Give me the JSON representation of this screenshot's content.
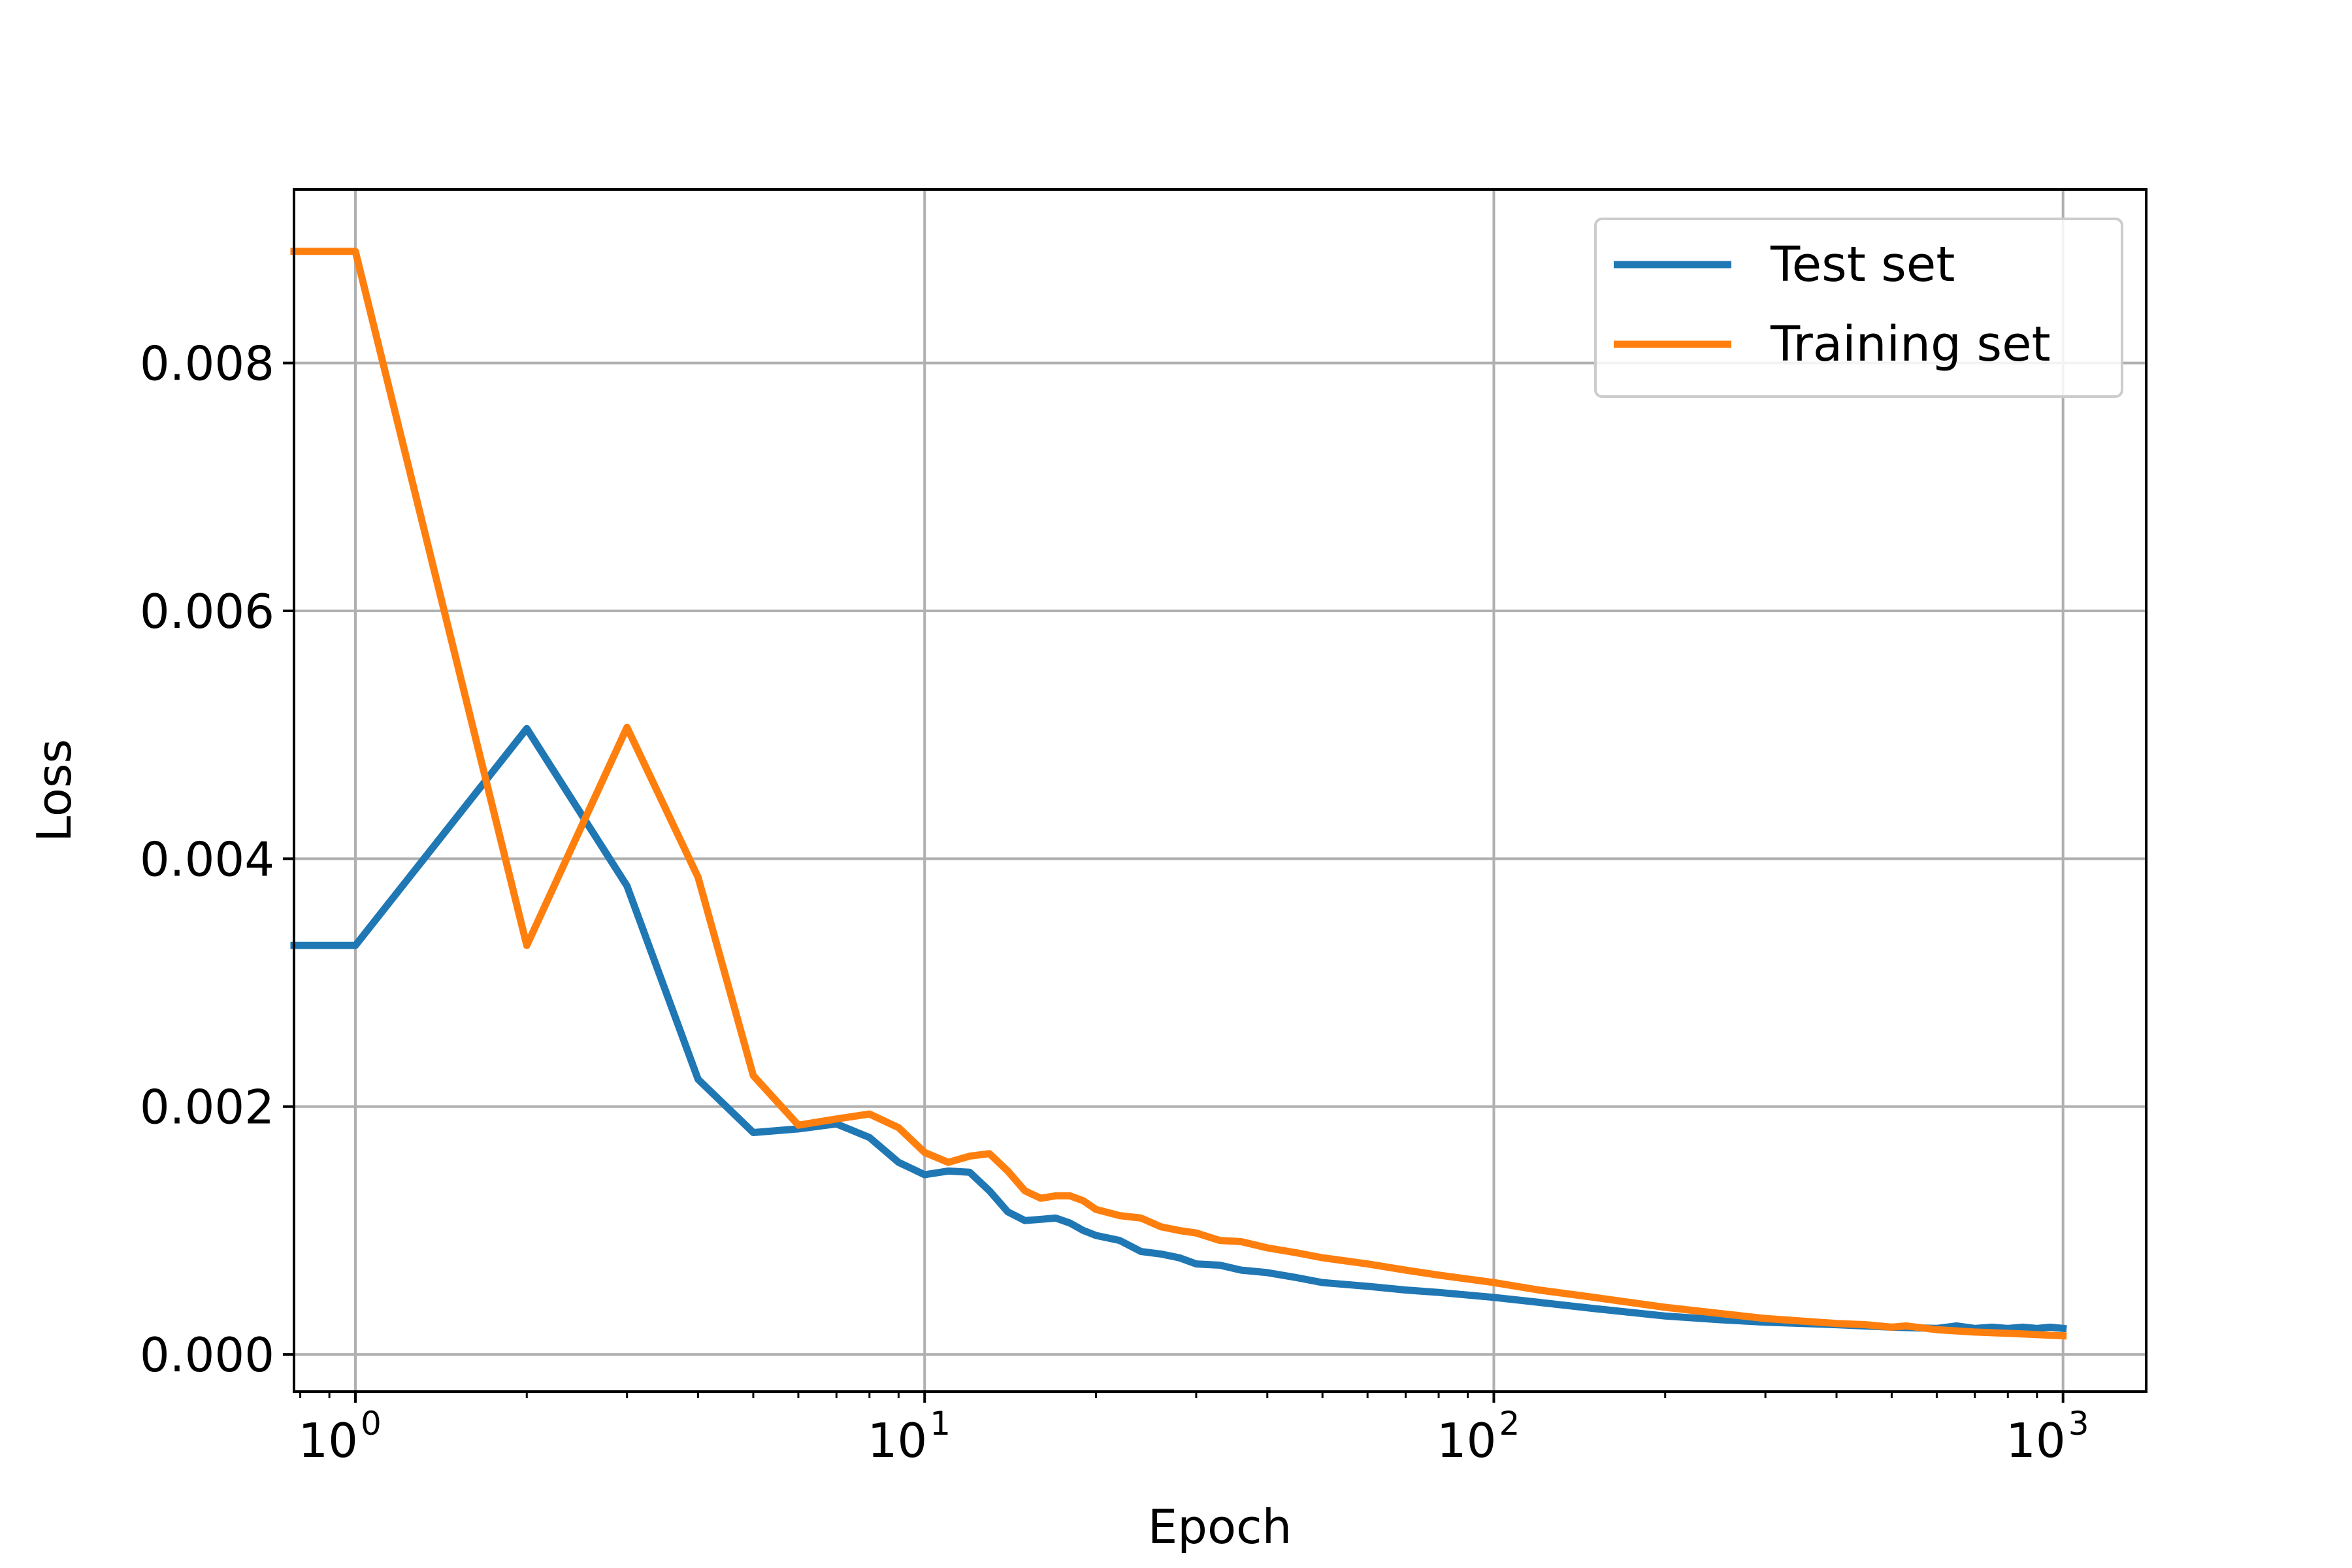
{
  "chart_data": {
    "type": "line",
    "title": "",
    "xlabel": "Epoch",
    "ylabel": "Loss",
    "xscale": "log",
    "xlim": [
      0.78,
      1400
    ],
    "ylim": [
      -0.0003,
      0.0094
    ],
    "grid": true,
    "legend": "top-right",
    "x_ticks": [
      {
        "value": 1,
        "base": "10",
        "exp": "0"
      },
      {
        "value": 10,
        "base": "10",
        "exp": "1"
      },
      {
        "value": 100,
        "base": "10",
        "exp": "2"
      },
      {
        "value": 1000,
        "base": "10",
        "exp": "3"
      }
    ],
    "y_ticks": [
      {
        "value": 0.0,
        "label": "0.000"
      },
      {
        "value": 0.002,
        "label": "0.002"
      },
      {
        "value": 0.004,
        "label": "0.004"
      },
      {
        "value": 0.006,
        "label": "0.006"
      },
      {
        "value": 0.008,
        "label": "0.008"
      }
    ],
    "series": [
      {
        "name": "Test set",
        "color": "#1f77b4",
        "x": [
          0.78,
          1,
          2,
          3,
          4,
          5,
          6,
          7,
          8,
          9,
          10,
          11,
          12,
          13,
          14,
          15,
          16,
          17,
          18,
          19,
          20,
          22,
          24,
          26,
          28,
          30,
          33,
          36,
          40,
          45,
          50,
          60,
          70,
          80,
          100,
          120,
          150,
          200,
          250,
          300,
          400,
          500,
          600,
          650,
          700,
          750,
          800,
          850,
          900,
          950,
          1000
        ],
        "y": [
          0.0033,
          0.0033,
          0.00505,
          0.00378,
          0.00222,
          0.00179,
          0.00182,
          0.00186,
          0.00175,
          0.00155,
          0.00145,
          0.00148,
          0.00147,
          0.00132,
          0.00115,
          0.00108,
          0.00109,
          0.0011,
          0.00106,
          0.001,
          0.00096,
          0.00092,
          0.00083,
          0.00081,
          0.00078,
          0.00073,
          0.00072,
          0.00068,
          0.00066,
          0.00062,
          0.00058,
          0.00055,
          0.00052,
          0.0005,
          0.00046,
          0.00042,
          0.00037,
          0.00031,
          0.00028,
          0.00026,
          0.00024,
          0.00022,
          0.00021,
          0.00023,
          0.00021,
          0.00022,
          0.00021,
          0.00022,
          0.00021,
          0.00022,
          0.00021
        ]
      },
      {
        "name": "Training set",
        "color": "#ff7f0e",
        "x": [
          0.78,
          1,
          2,
          3,
          4,
          5,
          6,
          7,
          8,
          9,
          10,
          11,
          12,
          13,
          14,
          15,
          16,
          17,
          18,
          19,
          20,
          22,
          24,
          26,
          28,
          30,
          33,
          36,
          40,
          45,
          50,
          60,
          70,
          80,
          100,
          120,
          150,
          200,
          250,
          300,
          400,
          450,
          500,
          530,
          600,
          700,
          800,
          900,
          1000
        ],
        "y": [
          0.0089,
          0.0089,
          0.0033,
          0.00506,
          0.00385,
          0.00225,
          0.00185,
          0.0019,
          0.00194,
          0.00183,
          0.00163,
          0.00155,
          0.0016,
          0.00162,
          0.00148,
          0.00132,
          0.00126,
          0.00128,
          0.00128,
          0.00124,
          0.00117,
          0.00112,
          0.0011,
          0.00103,
          0.001,
          0.00098,
          0.00092,
          0.00091,
          0.00086,
          0.00082,
          0.00078,
          0.00073,
          0.00068,
          0.00064,
          0.00058,
          0.00052,
          0.00046,
          0.00038,
          0.00033,
          0.00029,
          0.00025,
          0.00024,
          0.00022,
          0.00023,
          0.0002,
          0.00018,
          0.00017,
          0.00016,
          0.00015
        ]
      }
    ]
  }
}
